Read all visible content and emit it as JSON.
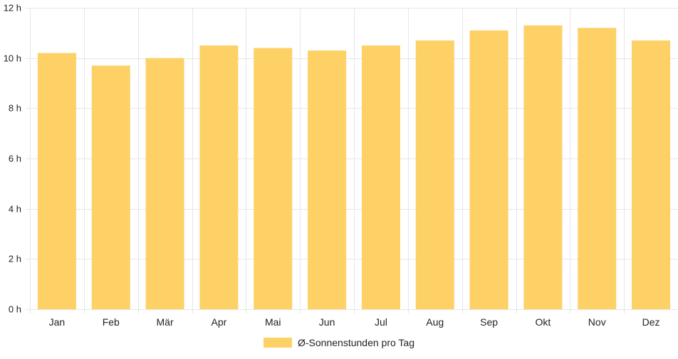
{
  "chart_data": {
    "type": "bar",
    "categories": [
      "Jan",
      "Feb",
      "Mär",
      "Apr",
      "Mai",
      "Jun",
      "Jul",
      "Aug",
      "Sep",
      "Okt",
      "Nov",
      "Dez"
    ],
    "series": [
      {
        "name": "Ø-Sonnenstunden pro Tag",
        "values": [
          10.2,
          9.7,
          10.0,
          10.5,
          10.4,
          10.3,
          10.5,
          10.7,
          11.1,
          11.3,
          11.2,
          10.7
        ],
        "color": "#FDD166"
      }
    ],
    "ylim": [
      0,
      12
    ],
    "yticks": [
      0,
      2,
      4,
      6,
      8,
      10,
      12
    ],
    "ytick_labels": [
      "0 h",
      "2 h",
      "4 h",
      "6 h",
      "8 h",
      "10 h",
      "12 h"
    ],
    "grid": true,
    "grid_color": "#e6e6e6",
    "legend_position": "bottom"
  }
}
